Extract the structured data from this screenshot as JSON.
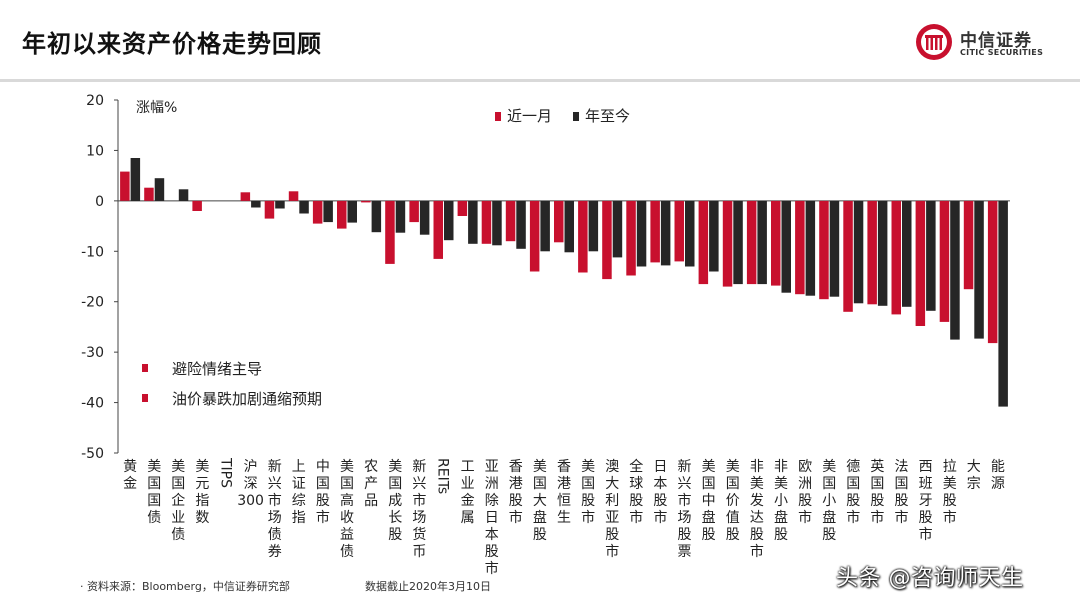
{
  "header": {
    "title": "年初以来资产价格走势回顾",
    "logo_cn": "中信证券",
    "logo_en": "CITIC SECURITIES"
  },
  "colors": {
    "recent": "#c8102e",
    "ytd": "#262626",
    "brand": "#c8102e"
  },
  "chart_data": {
    "type": "bar",
    "ylabel": "涨幅%",
    "ylim": [
      -50,
      20
    ],
    "yticks": [
      20,
      10,
      0,
      -10,
      -20,
      -30,
      -40,
      -50
    ],
    "grid": false,
    "legend_position": "top-center",
    "categories": [
      "黄金",
      "美国国债",
      "美国企业债",
      "美元指数",
      "TIPS",
      "沪深300",
      "新兴市场债券",
      "上证综指",
      "中国股市",
      "美国高收益债",
      "农产品",
      "美国成长股",
      "新兴市场货币",
      "REITs",
      "工业金属",
      "亚洲除日本股市",
      "香港股市",
      "美国大盘股",
      "香港恒生",
      "美国股市",
      "澳大利亚股市",
      "全球股市",
      "日本股市",
      "新兴市场股票",
      "美国中盘股",
      "美国价值股",
      "非美发达股市",
      "非美小盘股",
      "欧洲股市",
      "美国小盘股",
      "德国股市",
      "英国股市",
      "法国股市",
      "西班牙股市",
      "拉美股市",
      "大宗",
      "能源"
    ],
    "series": [
      {
        "name": "近一月",
        "values": [
          5.8,
          2.6,
          0.0,
          -2.0,
          0.0,
          1.7,
          -3.5,
          1.9,
          -4.5,
          -5.5,
          -0.3,
          -12.5,
          -4.2,
          -11.5,
          -3.0,
          -8.5,
          -8.0,
          -14.0,
          -8.2,
          -14.2,
          -15.5,
          -14.8,
          -12.2,
          -12.0,
          -16.5,
          -17.0,
          -16.5,
          -16.8,
          -18.5,
          -19.5,
          -22.0,
          -20.5,
          -22.5,
          -24.8,
          -24.0,
          -17.5,
          -28.2
        ]
      },
      {
        "name": "年至今",
        "values": [
          8.5,
          4.5,
          2.3,
          0.0,
          0.0,
          -1.3,
          -1.5,
          -2.5,
          -4.2,
          -4.3,
          -6.2,
          -6.3,
          -6.7,
          -7.8,
          -8.5,
          -8.8,
          -9.5,
          -10.0,
          -10.2,
          -10.0,
          -11.2,
          -13.0,
          -12.8,
          -13.0,
          -14.0,
          -16.5,
          -16.5,
          -18.2,
          -18.8,
          -19.0,
          -20.3,
          -20.8,
          -21.0,
          -21.8,
          -27.5,
          -27.3,
          -40.8
        ]
      }
    ],
    "annotations": [
      "避险情绪主导",
      "油价暴跌加剧通缩预期"
    ]
  },
  "footer": {
    "source": "· 资料来源：Bloomberg，中信证券研究部",
    "date": "数据截止2020年3月10日"
  },
  "watermark": "头条 @咨询师天生"
}
